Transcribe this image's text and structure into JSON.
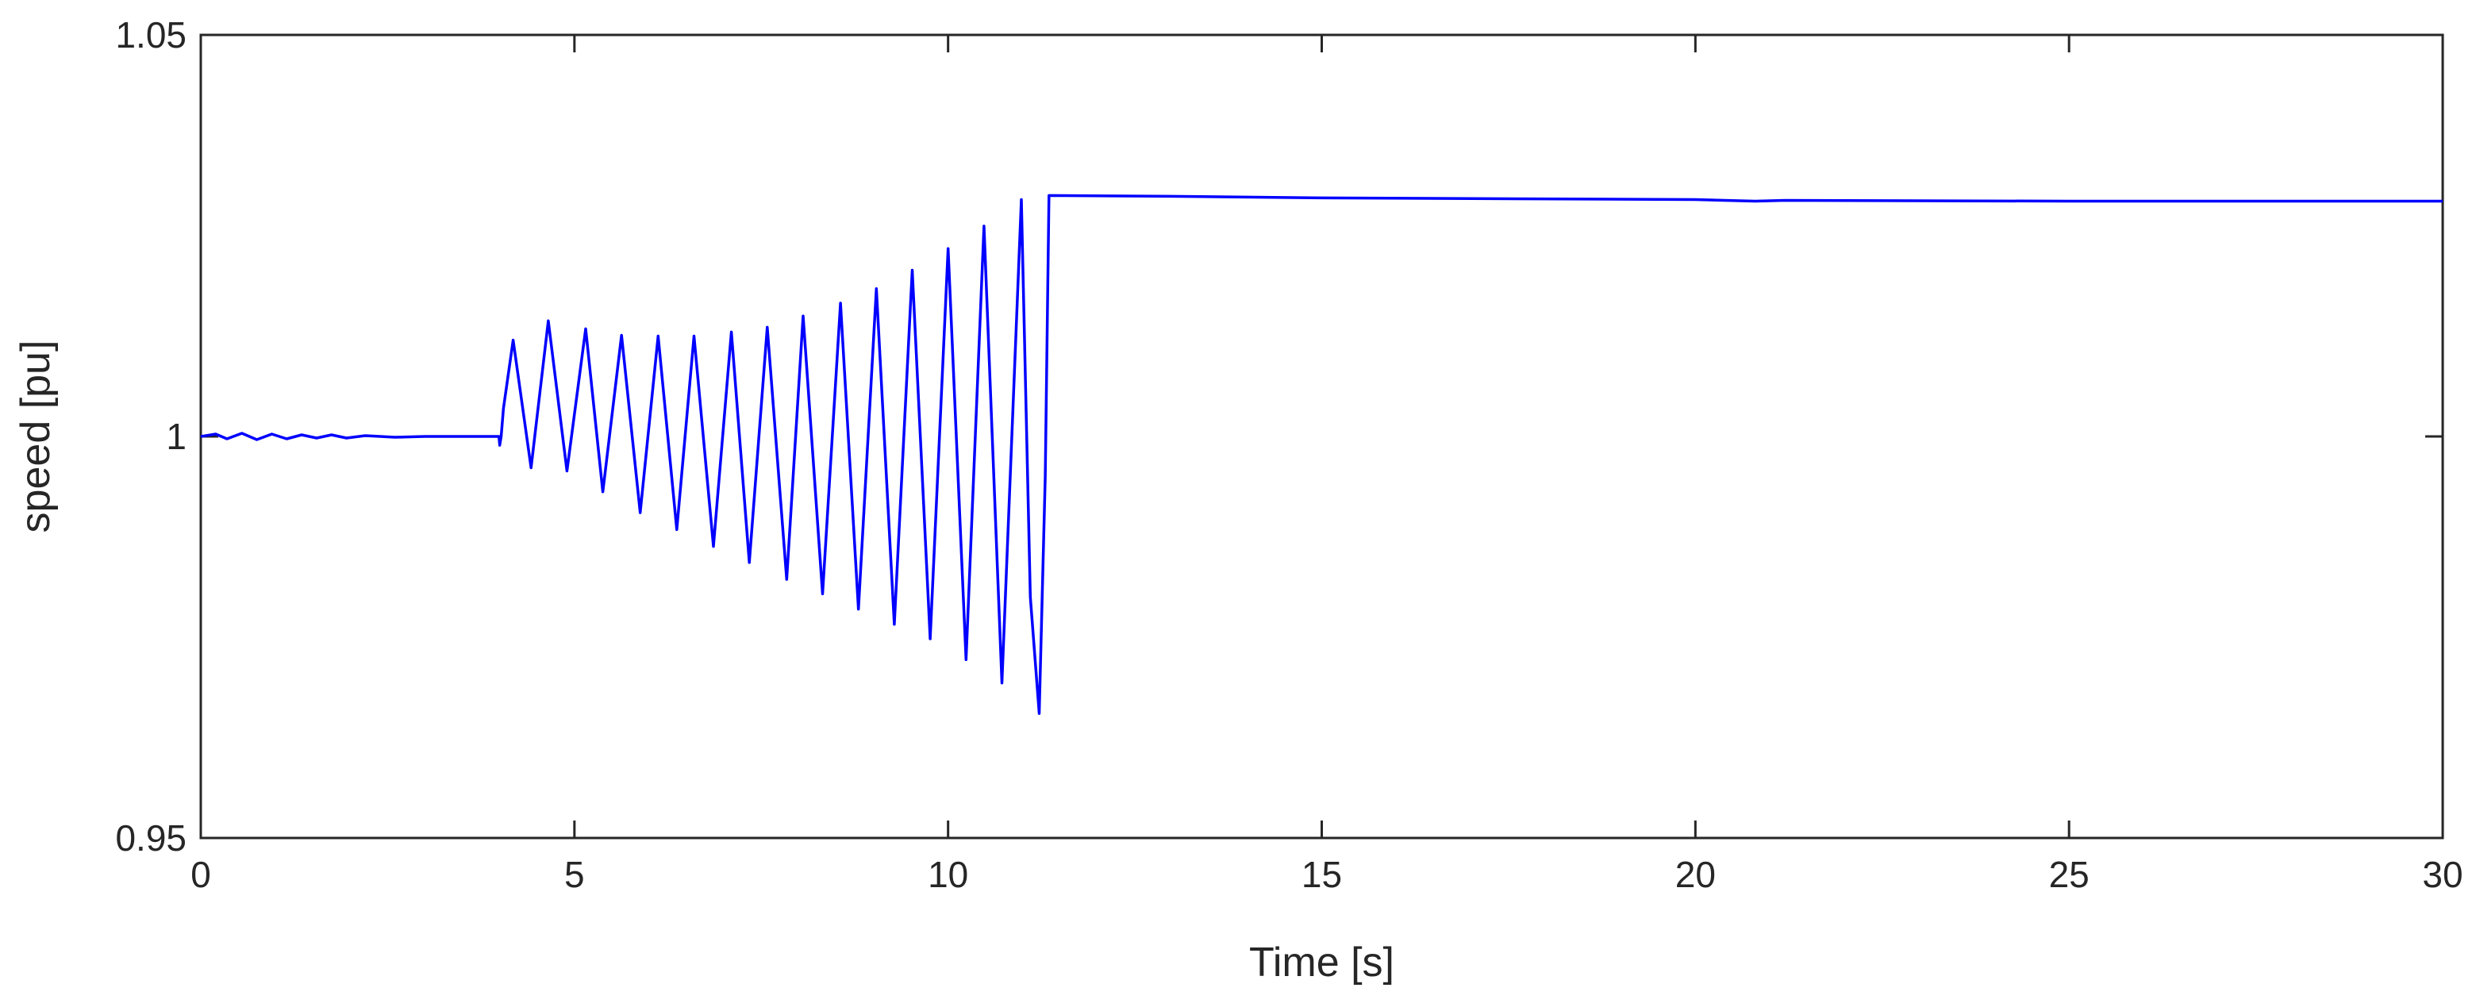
{
  "chart_data": {
    "type": "line",
    "title": "",
    "xlabel": "Time [s]",
    "ylabel": "speed [pu]",
    "xlim": [
      0,
      30
    ],
    "ylim": [
      0.95,
      1.05
    ],
    "xticks": [
      0,
      5,
      10,
      15,
      20,
      25,
      30
    ],
    "xtick_labels": [
      "0",
      "5",
      "10",
      "15",
      "20",
      "25",
      "30"
    ],
    "yticks": [
      0.95,
      1,
      1.05
    ],
    "ytick_labels": [
      "0.95",
      "1",
      "1.05"
    ],
    "grid": false,
    "box": true,
    "line_color": "#0000ff",
    "series": [
      {
        "x": [
          0,
          0.2,
          0.35,
          0.55,
          0.75,
          0.95,
          1.15,
          1.35,
          1.55,
          1.75,
          1.95,
          2.2,
          2.6,
          3.0,
          3.5,
          3.99,
          4.0,
          4.02,
          4.05,
          4.18,
          4.42,
          4.65,
          4.9,
          5.15,
          5.38,
          5.63,
          5.88,
          6.12,
          6.37,
          6.6,
          6.86,
          7.1,
          7.34,
          7.58,
          7.84,
          8.06,
          8.32,
          8.56,
          8.8,
          9.04,
          9.28,
          9.52,
          9.76,
          10.0,
          10.24,
          10.48,
          10.72,
          10.98,
          11.1,
          11.22,
          11.3,
          11.35,
          13,
          15,
          20,
          20.8,
          21.2,
          25,
          30
        ],
        "y": [
          1.0,
          1.0003,
          0.9997,
          1.0004,
          0.9996,
          1.0003,
          0.9997,
          1.0002,
          0.9998,
          1.0002,
          0.9998,
          1.0001,
          0.9999,
          1.0,
          1.0,
          1.0,
          0.9989,
          1.0,
          1.0035,
          1.012,
          0.9961,
          1.0144,
          0.9957,
          1.0134,
          0.9931,
          1.0126,
          0.9905,
          1.0125,
          0.9884,
          1.0125,
          0.9863,
          1.013,
          0.9843,
          1.0136,
          0.9822,
          1.015,
          0.9804,
          1.0166,
          0.9785,
          1.0184,
          0.9766,
          1.0207,
          0.9748,
          1.0234,
          0.9722,
          1.0262,
          0.9693,
          1.0295,
          0.98,
          0.9655,
          0.995,
          1.03,
          1.0299,
          1.0297,
          1.0295,
          1.0293,
          1.0294,
          1.0293,
          1.0293
        ]
      }
    ]
  }
}
